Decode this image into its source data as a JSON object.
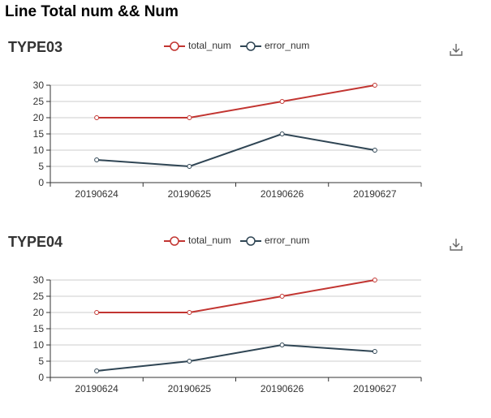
{
  "page": {
    "title": "Line Total num && Num"
  },
  "colors": {
    "total_num": "#c23531",
    "error_num": "#2f4554",
    "axis": "#333333",
    "grid": "#cccccc"
  },
  "icons": {
    "download": "download-icon"
  },
  "chart_data": [
    {
      "type": "line",
      "title": "TYPE03",
      "categories": [
        "20190624",
        "20190625",
        "20190626",
        "20190627"
      ],
      "series": [
        {
          "name": "total_num",
          "values": [
            20,
            20,
            25,
            30
          ]
        },
        {
          "name": "error_num",
          "values": [
            7,
            5,
            15,
            10
          ]
        }
      ],
      "ylim": [
        0,
        30
      ],
      "yticks": [
        "0",
        "5",
        "10",
        "15",
        "20",
        "25",
        "30"
      ],
      "grid": true,
      "legend": "top-center"
    },
    {
      "type": "line",
      "title": "TYPE04",
      "categories": [
        "20190624",
        "20190625",
        "20190626",
        "20190627"
      ],
      "series": [
        {
          "name": "total_num",
          "values": [
            20,
            20,
            25,
            30
          ]
        },
        {
          "name": "error_num",
          "values": [
            2,
            5,
            10,
            8
          ]
        }
      ],
      "ylim": [
        0,
        30
      ],
      "yticks": [
        "0",
        "5",
        "10",
        "15",
        "20",
        "25",
        "30"
      ],
      "grid": true,
      "legend": "top-center"
    }
  ]
}
